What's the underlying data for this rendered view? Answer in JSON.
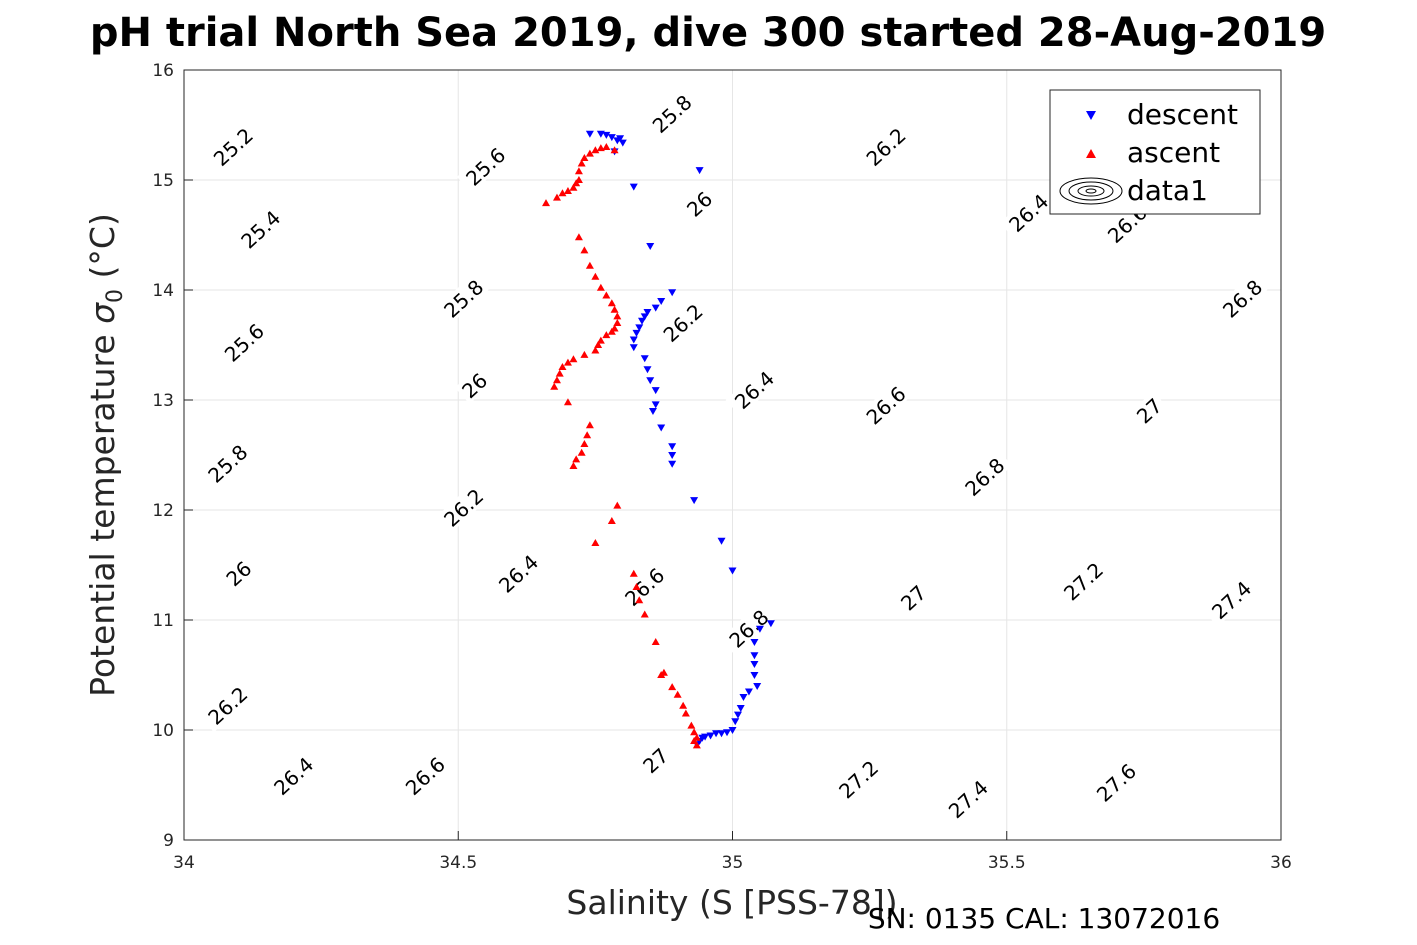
{
  "chart_data": {
    "type": "scatter",
    "title": "pH trial North Sea 2019, dive 300 started 28-Aug-2019",
    "xlabel": "Salinity (S [PSS-78])",
    "ylabel": "Potential temperature σ0 (°C)",
    "ylabel_main": "Potential temperature ",
    "ylabel_sigma": "σ",
    "ylabel_sub": "0",
    "ylabel_unit": " (°C)",
    "footnote": "SN: 0135  CAL: 13072016",
    "xlim": [
      34,
      36
    ],
    "ylim": [
      9,
      16
    ],
    "xticks": [
      "34",
      "34.5",
      "35",
      "35.5",
      "36"
    ],
    "yticks": [
      "9",
      "10",
      "11",
      "12",
      "13",
      "14",
      "15",
      "16"
    ],
    "grid": true,
    "legend_position": "top-right",
    "legend": [
      "descent",
      "ascent",
      "data1"
    ],
    "contour_levels": [
      25.2,
      25.4,
      25.6,
      25.8,
      26.0,
      26.2,
      26.4,
      26.6,
      26.8,
      27.0,
      27.2,
      27.4,
      27.6
    ],
    "contour_labels": [
      {
        "text": "25.2",
        "s": 34.09,
        "t": 15.3
      },
      {
        "text": "25.4",
        "s": 34.14,
        "t": 14.55
      },
      {
        "text": "25.6",
        "s": 34.11,
        "t": 13.52
      },
      {
        "text": "25.8",
        "s": 34.08,
        "t": 12.42
      },
      {
        "text": "26",
        "s": 34.1,
        "t": 11.42
      },
      {
        "text": "26.2",
        "s": 34.08,
        "t": 10.22
      },
      {
        "text": "26.4",
        "s": 34.2,
        "t": 9.58
      },
      {
        "text": "26.6",
        "s": 34.44,
        "t": 9.58
      },
      {
        "text": "25.6",
        "s": 34.55,
        "t": 15.12
      },
      {
        "text": "25.8",
        "s": 34.51,
        "t": 13.92
      },
      {
        "text": "26",
        "s": 34.53,
        "t": 13.13
      },
      {
        "text": "26.2",
        "s": 34.51,
        "t": 12.02
      },
      {
        "text": "26.4",
        "s": 34.61,
        "t": 11.42
      },
      {
        "text": "26.6",
        "s": 34.84,
        "t": 11.3
      },
      {
        "text": "27",
        "s": 34.86,
        "t": 9.72
      },
      {
        "text": "25.8",
        "s": 34.89,
        "t": 15.6
      },
      {
        "text": "26",
        "s": 34.94,
        "t": 14.78
      },
      {
        "text": "26.2",
        "s": 34.91,
        "t": 13.7
      },
      {
        "text": "26.4",
        "s": 35.04,
        "t": 13.09
      },
      {
        "text": "26.8",
        "s": 35.03,
        "t": 10.92
      },
      {
        "text": "27.2",
        "s": 35.23,
        "t": 9.55
      },
      {
        "text": "26.2",
        "s": 35.28,
        "t": 15.3
      },
      {
        "text": "26.6",
        "s": 35.28,
        "t": 12.95
      },
      {
        "text": "26.8",
        "s": 35.46,
        "t": 12.3
      },
      {
        "text": "27",
        "s": 35.33,
        "t": 11.2
      },
      {
        "text": "27.4",
        "s": 35.43,
        "t": 9.37
      },
      {
        "text": "26.4",
        "s": 35.54,
        "t": 14.7
      },
      {
        "text": "26.6",
        "s": 35.72,
        "t": 14.6
      },
      {
        "text": "27",
        "s": 35.76,
        "t": 12.9
      },
      {
        "text": "27.2",
        "s": 35.64,
        "t": 11.35
      },
      {
        "text": "27.6",
        "s": 35.7,
        "t": 9.52
      },
      {
        "text": "26.8",
        "s": 35.93,
        "t": 13.92
      },
      {
        "text": "27.4",
        "s": 35.91,
        "t": 11.18
      }
    ],
    "series": [
      {
        "name": "descent",
        "color": "#0000ff",
        "marker": "triangle-down",
        "points": [
          [
            34.74,
            15.42
          ],
          [
            34.76,
            15.42
          ],
          [
            34.77,
            15.41
          ],
          [
            34.78,
            15.39
          ],
          [
            34.79,
            15.36
          ],
          [
            34.795,
            15.38
          ],
          [
            34.8,
            15.34
          ],
          [
            34.785,
            15.26
          ],
          [
            34.94,
            15.09
          ],
          [
            34.82,
            14.94
          ],
          [
            34.85,
            14.4
          ],
          [
            34.89,
            13.98
          ],
          [
            34.87,
            13.9
          ],
          [
            34.86,
            13.84
          ],
          [
            34.845,
            13.8
          ],
          [
            34.84,
            13.76
          ],
          [
            34.835,
            13.72
          ],
          [
            34.83,
            13.66
          ],
          [
            34.825,
            13.61
          ],
          [
            34.82,
            13.55
          ],
          [
            34.82,
            13.48
          ],
          [
            34.84,
            13.38
          ],
          [
            34.845,
            13.28
          ],
          [
            34.85,
            13.18
          ],
          [
            34.86,
            13.09
          ],
          [
            34.86,
            12.96
          ],
          [
            34.855,
            12.9
          ],
          [
            34.87,
            12.75
          ],
          [
            34.89,
            12.58
          ],
          [
            34.89,
            12.5
          ],
          [
            34.89,
            12.42
          ],
          [
            34.93,
            12.09
          ],
          [
            34.98,
            11.72
          ],
          [
            35.0,
            11.45
          ],
          [
            35.07,
            10.97
          ],
          [
            35.05,
            10.92
          ],
          [
            35.04,
            10.8
          ],
          [
            35.04,
            10.68
          ],
          [
            35.04,
            10.6
          ],
          [
            35.04,
            10.5
          ],
          [
            35.045,
            10.4
          ],
          [
            35.03,
            10.35
          ],
          [
            35.02,
            10.3
          ],
          [
            35.015,
            10.2
          ],
          [
            35.01,
            10.14
          ],
          [
            35.005,
            10.08
          ],
          [
            35.0,
            10.0
          ],
          [
            34.99,
            9.98
          ],
          [
            34.98,
            9.97
          ],
          [
            34.97,
            9.97
          ],
          [
            34.96,
            9.95
          ],
          [
            34.95,
            9.94
          ],
          [
            34.945,
            9.93
          ],
          [
            34.94,
            9.9
          ],
          [
            34.935,
            9.87
          ]
        ]
      },
      {
        "name": "ascent",
        "color": "#ff0000",
        "marker": "triangle-up",
        "points": [
          [
            34.66,
            14.79
          ],
          [
            34.68,
            14.84
          ],
          [
            34.69,
            14.88
          ],
          [
            34.7,
            14.9
          ],
          [
            34.71,
            14.93
          ],
          [
            34.715,
            14.97
          ],
          [
            34.72,
            15.0
          ],
          [
            34.72,
            15.08
          ],
          [
            34.725,
            15.15
          ],
          [
            34.73,
            15.2
          ],
          [
            34.74,
            15.24
          ],
          [
            34.75,
            15.27
          ],
          [
            34.76,
            15.29
          ],
          [
            34.77,
            15.3
          ],
          [
            34.785,
            15.27
          ],
          [
            34.72,
            14.48
          ],
          [
            34.73,
            14.36
          ],
          [
            34.74,
            14.22
          ],
          [
            34.75,
            14.12
          ],
          [
            34.76,
            14.02
          ],
          [
            34.77,
            13.95
          ],
          [
            34.78,
            13.88
          ],
          [
            34.785,
            13.82
          ],
          [
            34.79,
            13.76
          ],
          [
            34.79,
            13.7
          ],
          [
            34.785,
            13.65
          ],
          [
            34.78,
            13.62
          ],
          [
            34.77,
            13.59
          ],
          [
            34.76,
            13.54
          ],
          [
            34.755,
            13.5
          ],
          [
            34.75,
            13.45
          ],
          [
            34.73,
            13.41
          ],
          [
            34.71,
            13.37
          ],
          [
            34.7,
            13.34
          ],
          [
            34.69,
            13.3
          ],
          [
            34.685,
            13.24
          ],
          [
            34.68,
            13.18
          ],
          [
            34.675,
            13.12
          ],
          [
            34.7,
            12.98
          ],
          [
            34.74,
            12.77
          ],
          [
            34.735,
            12.68
          ],
          [
            34.73,
            12.6
          ],
          [
            34.725,
            12.52
          ],
          [
            34.715,
            12.46
          ],
          [
            34.71,
            12.4
          ],
          [
            34.79,
            12.04
          ],
          [
            34.78,
            11.9
          ],
          [
            34.75,
            11.7
          ],
          [
            34.82,
            11.42
          ],
          [
            34.825,
            11.3
          ],
          [
            34.83,
            11.18
          ],
          [
            34.84,
            11.05
          ],
          [
            34.86,
            10.8
          ],
          [
            34.875,
            10.52
          ],
          [
            34.87,
            10.5
          ],
          [
            34.89,
            10.39
          ],
          [
            34.9,
            10.32
          ],
          [
            34.91,
            10.22
          ],
          [
            34.915,
            10.15
          ],
          [
            34.925,
            10.04
          ],
          [
            34.93,
            9.98
          ],
          [
            34.935,
            9.93
          ],
          [
            34.93,
            9.9
          ],
          [
            34.935,
            9.86
          ]
        ]
      },
      {
        "name": "data1",
        "marker": "contour"
      }
    ]
  }
}
